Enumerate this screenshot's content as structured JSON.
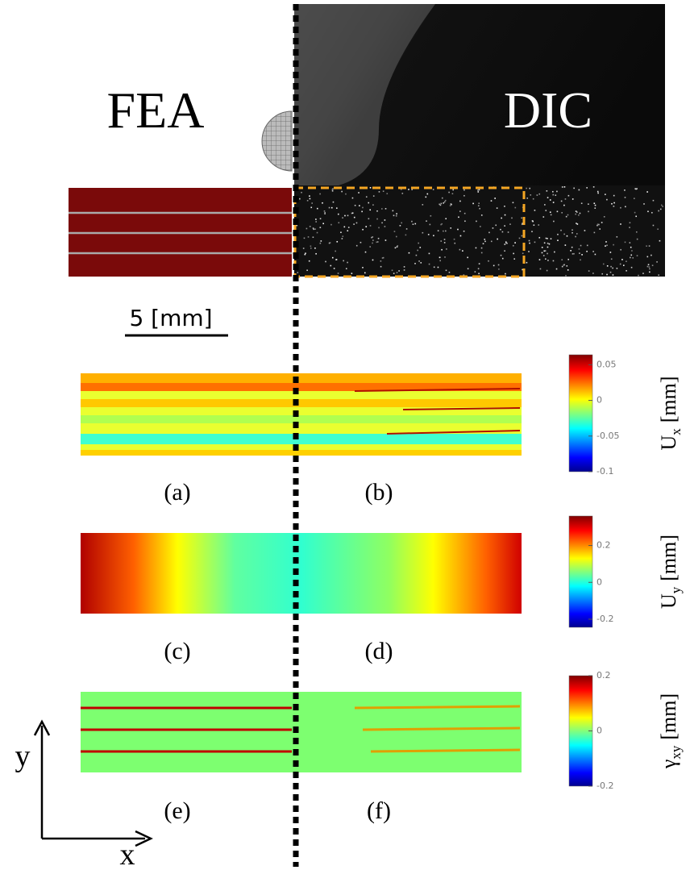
{
  "figure": {
    "left_label": "FEA",
    "right_label": "DIC",
    "scale_bar": "5 [mm]",
    "panels": [
      "(a)",
      "(b)",
      "(c)",
      "(d)",
      "(e)",
      "(f)"
    ],
    "colorbars": [
      {
        "symbol": "U",
        "subscript": "x",
        "unit": "[mm]",
        "lim": [
          -0.1,
          0.064
        ],
        "ticks": [
          0.05,
          0,
          -0.05,
          -0.1
        ]
      },
      {
        "symbol": "U",
        "subscript": "y",
        "unit": "[mm]",
        "lim": [
          -0.244,
          0.36
        ],
        "ticks": [
          0.2,
          0,
          -0.2
        ]
      },
      {
        "symbol": "γ",
        "subscript": "xy",
        "unit": "[mm]",
        "lim": [
          -0.2,
          0.2
        ],
        "ticks": [
          0.2,
          0,
          -0.2
        ]
      }
    ],
    "axes": {
      "x": "x",
      "y": "y"
    }
  }
}
